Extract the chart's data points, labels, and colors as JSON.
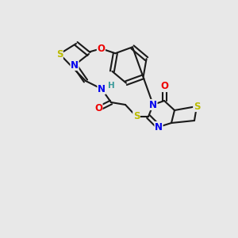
{
  "bg_color": "#e8e8e8",
  "bond_color": "#1a1a1a",
  "atom_colors": {
    "N": "#0000ee",
    "O": "#ee0000",
    "S": "#bbbb00",
    "H": "#3a9a9a",
    "C": "#1a1a1a"
  },
  "font_size": 8.5,
  "figsize": [
    3.0,
    3.0
  ],
  "dpi": 100
}
